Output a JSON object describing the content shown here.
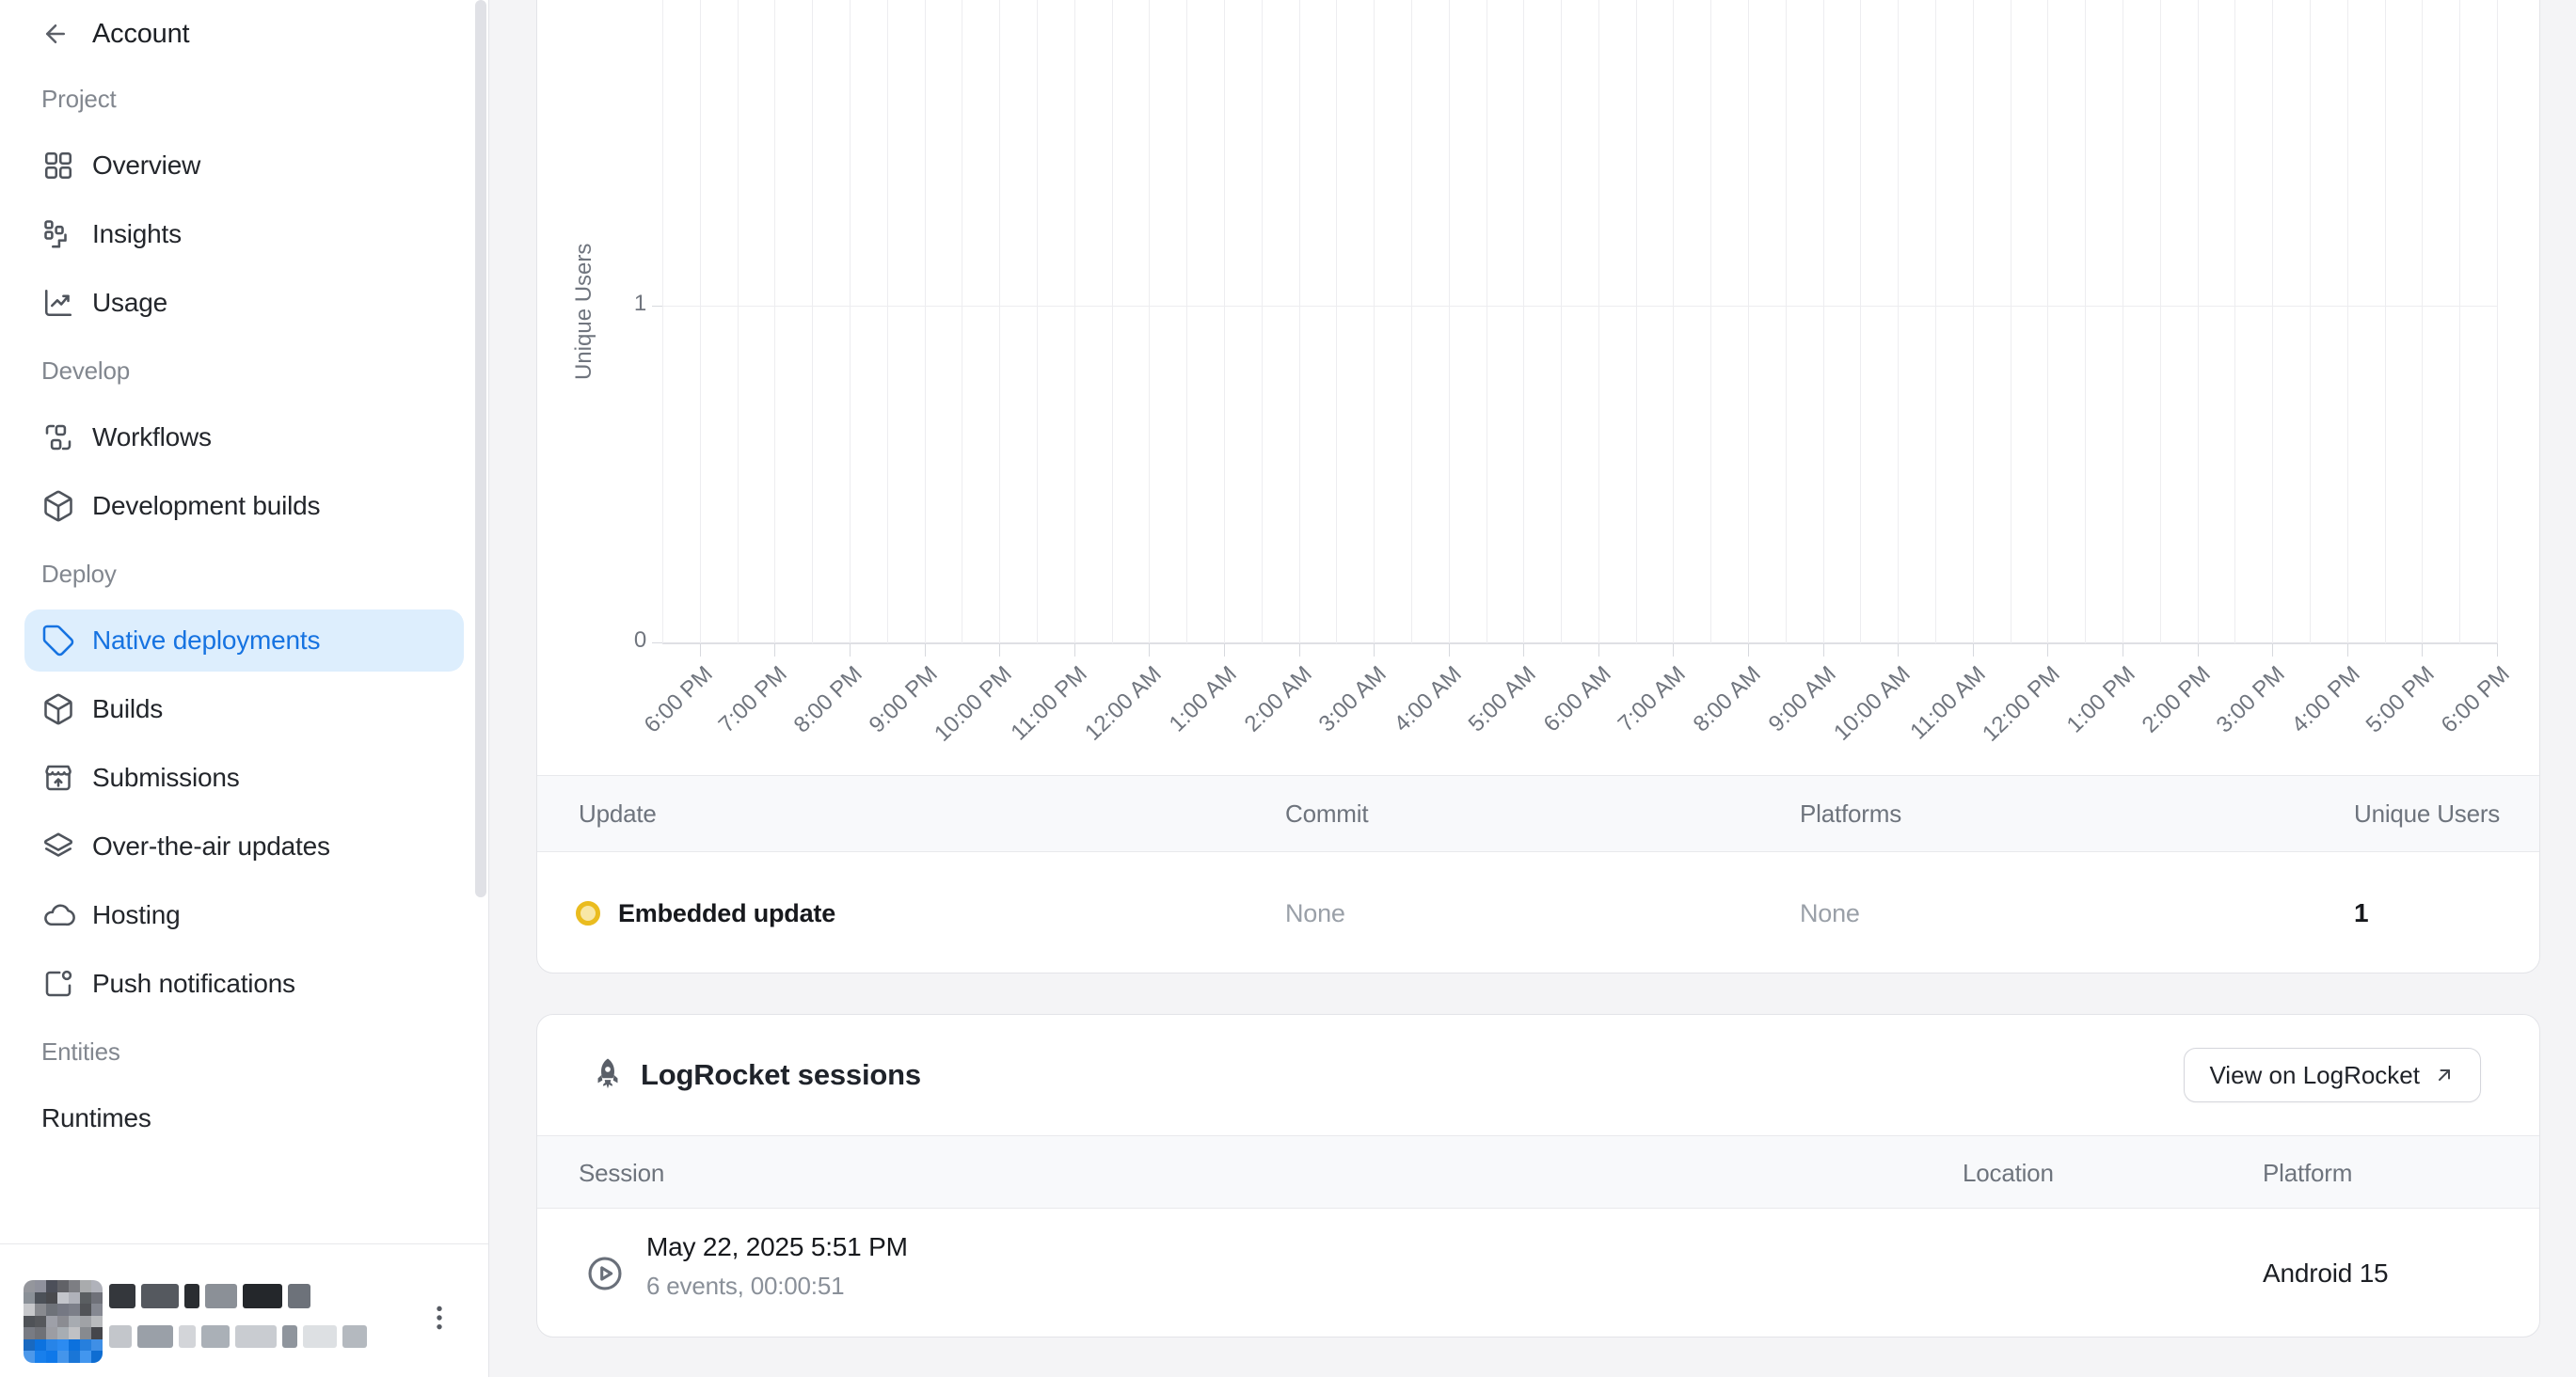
{
  "colors": {
    "accent_blue": "#1673e1",
    "selected_item_bg": "#ddeefd",
    "update_badge_ring": "#eabc1f",
    "update_badge_fill": "#f8e7a6",
    "page_bg": "#f4f4f6"
  },
  "sidebar": {
    "back_label": "Account",
    "sections": [
      {
        "label": "Project",
        "items": [
          {
            "label": "Overview",
            "icon": "overview-grid-icon",
            "selected": false
          },
          {
            "label": "Insights",
            "icon": "insights-icon",
            "selected": false
          },
          {
            "label": "Usage",
            "icon": "usage-chart-icon",
            "selected": false
          }
        ]
      },
      {
        "label": "Develop",
        "items": [
          {
            "label": "Workflows",
            "icon": "workflows-icon",
            "selected": false
          },
          {
            "label": "Development builds",
            "icon": "dev-builds-cube-icon",
            "selected": false
          }
        ]
      },
      {
        "label": "Deploy",
        "items": [
          {
            "label": "Native deployments",
            "icon": "deployments-tag-icon",
            "selected": true
          },
          {
            "label": "Builds",
            "icon": "builds-cube-icon",
            "selected": false
          },
          {
            "label": "Submissions",
            "icon": "submissions-store-icon",
            "selected": false
          },
          {
            "label": "Over-the-air updates",
            "icon": "ota-layers-icon",
            "selected": false
          },
          {
            "label": "Hosting",
            "icon": "hosting-cloud-icon",
            "selected": false
          },
          {
            "label": "Push notifications",
            "icon": "push-notifications-icon",
            "selected": false
          }
        ]
      },
      {
        "label": "Entities",
        "items": [
          {
            "label": "Runtimes",
            "icon": null,
            "selected": false
          }
        ]
      }
    ]
  },
  "chart_data": {
    "type": "line",
    "title": "",
    "xlabel": "",
    "ylabel": "Unique Users",
    "y_ticks": [
      "0",
      "1"
    ],
    "ylim": [
      0,
      2
    ],
    "grid": true,
    "x_tick_labels": [
      "6:00 PM",
      "7:00 PM",
      "8:00 PM",
      "9:00 PM",
      "10:00 PM",
      "11:00 PM",
      "12:00 AM",
      "1:00 AM",
      "2:00 AM",
      "3:00 AM",
      "4:00 AM",
      "5:00 AM",
      "6:00 AM",
      "7:00 AM",
      "8:00 AM",
      "9:00 AM",
      "10:00 AM",
      "11:00 AM",
      "12:00 PM",
      "1:00 PM",
      "2:00 PM",
      "3:00 PM",
      "4:00 PM",
      "5:00 PM",
      "6:00 PM"
    ],
    "minor_vertical_gridlines": "every 30 minutes",
    "series": [],
    "note": "no data series visible in the plotted window"
  },
  "updates_table": {
    "headers": [
      "Update",
      "Commit",
      "Platforms",
      "Unique Users"
    ],
    "rows": [
      {
        "update": "Embedded update",
        "commit": "None",
        "platforms": "None",
        "unique_users": "1"
      }
    ]
  },
  "logrocket": {
    "title": "LogRocket sessions",
    "view_button_label": "View on LogRocket",
    "headers": [
      "Session",
      "Location",
      "Platform"
    ],
    "rows": [
      {
        "session_title": "May 22, 2025 5:51 PM",
        "session_details": "6 events, 00:00:51",
        "location": "",
        "platform": "Android 15"
      }
    ]
  }
}
